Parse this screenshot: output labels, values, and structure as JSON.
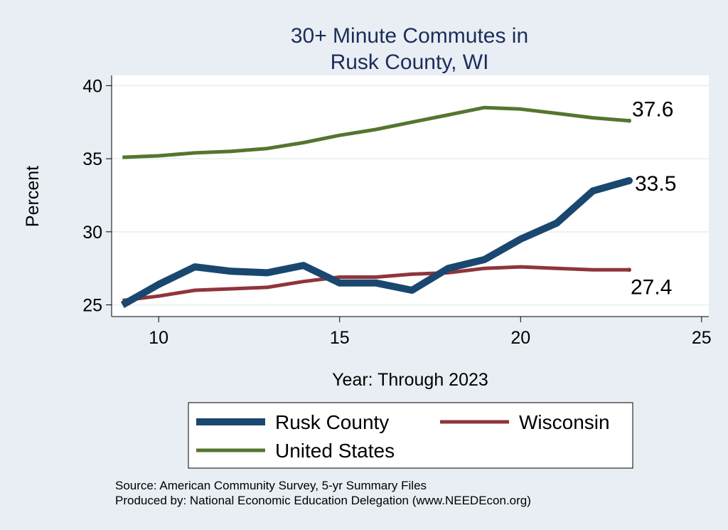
{
  "chart_data": {
    "type": "line",
    "title": [
      "30+ Minute Commutes in",
      "Rusk County, WI"
    ],
    "xlabel": "Year: Through 2023",
    "ylabel": "Percent",
    "xlim": [
      8.7,
      25.2
    ],
    "ylim": [
      24.2,
      40.7
    ],
    "x_ticks": [
      10,
      15,
      20,
      25
    ],
    "y_ticks": [
      25,
      30,
      35,
      40
    ],
    "grid": true,
    "legend_position": "bottom",
    "series": [
      {
        "name": "Rusk County",
        "color": "#1a476f",
        "x": [
          9,
          10,
          11,
          12,
          13,
          14,
          15,
          16,
          17,
          18,
          19,
          20,
          21,
          22,
          23
        ],
        "values": [
          25.0,
          26.4,
          27.6,
          27.3,
          27.2,
          27.7,
          26.5,
          26.5,
          26.0,
          27.5,
          28.1,
          29.5,
          30.6,
          32.8,
          33.5
        ],
        "end_label": "33.5"
      },
      {
        "name": "Wisconsin",
        "color": "#90353b",
        "x": [
          9,
          10,
          11,
          12,
          13,
          14,
          15,
          16,
          17,
          18,
          19,
          20,
          21,
          22,
          23
        ],
        "values": [
          25.3,
          25.6,
          26.0,
          26.1,
          26.2,
          26.6,
          26.9,
          26.9,
          27.1,
          27.2,
          27.5,
          27.6,
          27.5,
          27.4,
          27.4
        ],
        "end_label": "27.4"
      },
      {
        "name": "United States",
        "color": "#55752f",
        "x": [
          9,
          10,
          11,
          12,
          13,
          14,
          15,
          16,
          17,
          18,
          19,
          20,
          21,
          22,
          23
        ],
        "values": [
          35.1,
          35.2,
          35.4,
          35.5,
          35.7,
          36.1,
          36.6,
          37.0,
          37.5,
          38.0,
          38.5,
          38.4,
          38.1,
          37.8,
          37.6
        ],
        "end_label": "37.6"
      }
    ],
    "notes": [
      "Source: American Community Survey, 5-yr Summary Files",
      "Produced by: National Economic Education Delegation (www.NEEDEcon.org)"
    ]
  }
}
